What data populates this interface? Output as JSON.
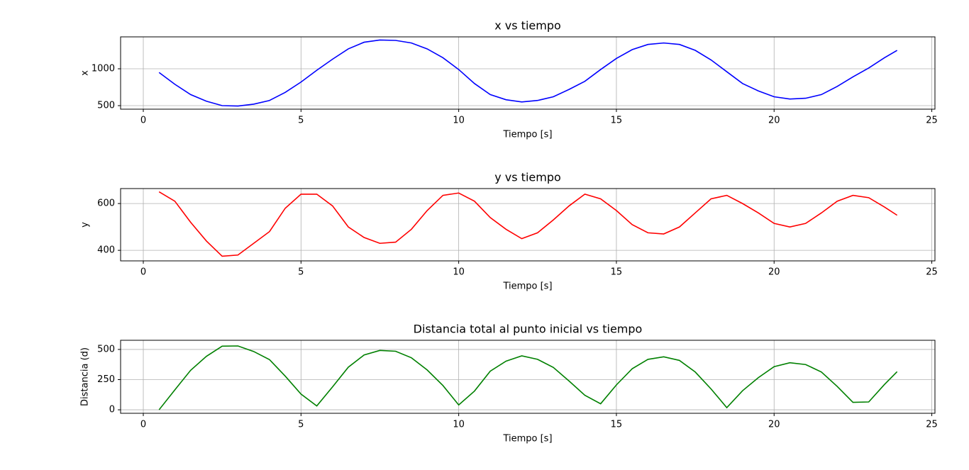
{
  "chart_data": [
    {
      "type": "line",
      "title": "x vs tiempo",
      "x_label": "Tiempo [s]",
      "y_label": "x",
      "color": "#0000ff",
      "grid": true,
      "x": [
        0.5,
        1,
        1.5,
        2,
        2.5,
        3,
        3.5,
        4,
        4.5,
        5,
        5.5,
        6,
        6.5,
        7,
        7.5,
        8,
        8.5,
        9,
        9.5,
        10,
        10.5,
        11,
        11.5,
        12,
        12.5,
        13,
        13.5,
        14,
        14.5,
        15,
        15.5,
        16,
        16.5,
        17,
        17.5,
        18,
        18.5,
        19,
        19.5,
        20,
        20.5,
        21,
        21.5,
        22,
        22.5,
        23,
        23.5,
        23.9
      ],
      "values": [
        950,
        790,
        650,
        560,
        500,
        495,
        520,
        570,
        680,
        820,
        980,
        1130,
        1270,
        1360,
        1390,
        1385,
        1350,
        1270,
        1150,
        990,
        800,
        650,
        580,
        550,
        570,
        620,
        720,
        830,
        990,
        1140,
        1260,
        1330,
        1350,
        1330,
        1250,
        1120,
        960,
        800,
        700,
        620,
        590,
        600,
        650,
        760,
        890,
        1010,
        1150,
        1250
      ],
      "xlim": [
        -0.72,
        25.1
      ],
      "xticks": [
        0,
        5,
        10,
        15,
        20,
        25
      ],
      "ylim": [
        452,
        1433
      ],
      "yticks": [
        500,
        1000
      ]
    },
    {
      "type": "line",
      "title": "y vs tiempo",
      "x_label": "Tiempo [s]",
      "y_label": "y",
      "color": "#ff0000",
      "grid": true,
      "x": [
        0.5,
        1,
        1.5,
        2,
        2.5,
        3,
        3.5,
        4,
        4.5,
        5,
        5.5,
        6,
        6.5,
        7,
        7.5,
        8,
        8.5,
        9,
        9.5,
        10,
        10.5,
        11,
        11.5,
        12,
        12.5,
        13,
        13.5,
        14,
        14.5,
        15,
        15.5,
        16,
        16.5,
        17,
        17.5,
        18,
        18.5,
        19,
        19.5,
        20,
        20.5,
        21,
        21.5,
        22,
        22.5,
        23,
        23.5,
        23.9
      ],
      "values": [
        650,
        610,
        520,
        440,
        375,
        380,
        430,
        480,
        580,
        640,
        640,
        590,
        500,
        455,
        430,
        435,
        490,
        570,
        635,
        645,
        610,
        540,
        490,
        450,
        475,
        530,
        590,
        640,
        620,
        570,
        510,
        475,
        470,
        500,
        560,
        620,
        635,
        600,
        560,
        515,
        500,
        515,
        560,
        610,
        635,
        625,
        585,
        550
      ],
      "xlim": [
        -0.72,
        25.1
      ],
      "xticks": [
        0,
        5,
        10,
        15,
        20,
        25
      ],
      "ylim": [
        355,
        664
      ],
      "yticks": [
        400,
        600
      ]
    },
    {
      "type": "line",
      "title": "Distancia total al punto inicial vs tiempo",
      "x_label": "Tiempo [s]",
      "y_label": "Distancia (d)",
      "color": "#008000",
      "grid": true,
      "x": [
        0.5,
        1,
        1.5,
        2,
        2.5,
        3,
        3.5,
        4,
        4.5,
        5,
        5.5,
        6,
        6.5,
        7,
        7.5,
        8,
        8.5,
        9,
        9.5,
        10,
        10.5,
        11,
        11.5,
        12,
        12.5,
        13,
        13.5,
        14,
        14.5,
        15,
        15.5,
        16,
        16.5,
        17,
        17.5,
        18,
        18.5,
        19,
        19.5,
        20,
        20.5,
        21,
        21.5,
        22,
        22.5,
        23,
        23.5,
        23.9
      ],
      "values": [
        0,
        165,
        327,
        443,
        527,
        529,
        483,
        416,
        279,
        130,
        32,
        190,
        353,
        454,
        492,
        485,
        431,
        330,
        201,
        40,
        155,
        320,
        403,
        447,
        418,
        351,
        238,
        120,
        50,
        206,
        340,
        418,
        439,
        409,
        313,
        173,
        18,
        158,
        266,
        357,
        390,
        375,
        313,
        194,
        62,
        65,
        210,
        316
      ],
      "xlim": [
        -0.72,
        25.1
      ],
      "xticks": [
        0,
        5,
        10,
        15,
        20,
        25
      ],
      "ylim": [
        -29,
        576
      ],
      "yticks": [
        0,
        250,
        500
      ]
    }
  ]
}
